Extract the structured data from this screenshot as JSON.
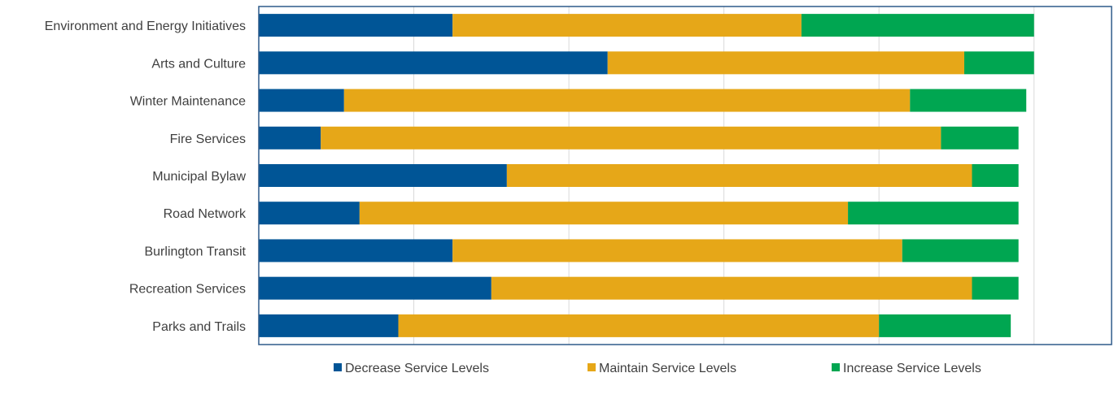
{
  "chart_data": {
    "type": "bar",
    "orientation": "horizontal",
    "stacked": true,
    "categories": [
      "Environment and Energy Initiatives",
      "Arts and Culture",
      "Winter Maintenance",
      "Fire Services",
      "Municipal Bylaw",
      "Road Network",
      "Burlington Transit",
      "Recreation Services",
      "Parks and Trails"
    ],
    "series": [
      {
        "name": "Decrease Service Levels",
        "color": "#005596",
        "values": [
          25,
          45,
          11,
          8,
          32,
          13,
          25,
          30,
          18
        ]
      },
      {
        "name": "Maintain Service Levels",
        "color": "#e6a718",
        "values": [
          45,
          46,
          73,
          80,
          60,
          63,
          58,
          62,
          62
        ]
      },
      {
        "name": "Increase Service Levels",
        "color": "#00a651",
        "values": [
          30,
          9,
          15,
          10,
          6,
          22,
          15,
          6,
          17
        ]
      }
    ],
    "xlim": [
      0,
      110
    ],
    "grid": true,
    "legend_position": "bottom"
  }
}
